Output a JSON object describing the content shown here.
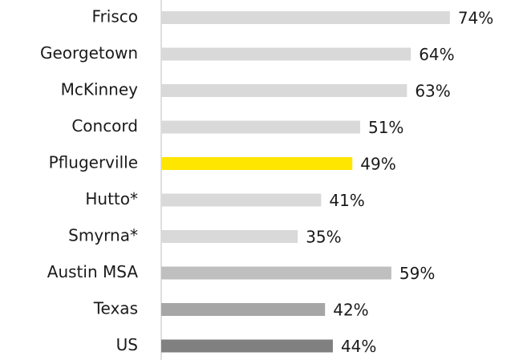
{
  "chart_data": {
    "type": "barh",
    "categories": [
      "Frisco",
      "Georgetown",
      "McKinney",
      "Concord",
      "Pflugerville",
      "Hutto*",
      "Smyrna*",
      "Austin MSA",
      "Texas",
      "US"
    ],
    "values": [
      74,
      64,
      63,
      51,
      49,
      41,
      35,
      59,
      42,
      44
    ],
    "value_labels": [
      "74%",
      "64%",
      "63%",
      "51%",
      "49%",
      "41%",
      "35%",
      "59%",
      "42%",
      "44%"
    ],
    "colors": [
      "#d9d9d9",
      "#d9d9d9",
      "#d9d9d9",
      "#d9d9d9",
      "#ffe600",
      "#d9d9d9",
      "#d9d9d9",
      "#bfbfbf",
      "#a6a6a6",
      "#808080"
    ],
    "xlim": [
      0,
      80
    ]
  }
}
